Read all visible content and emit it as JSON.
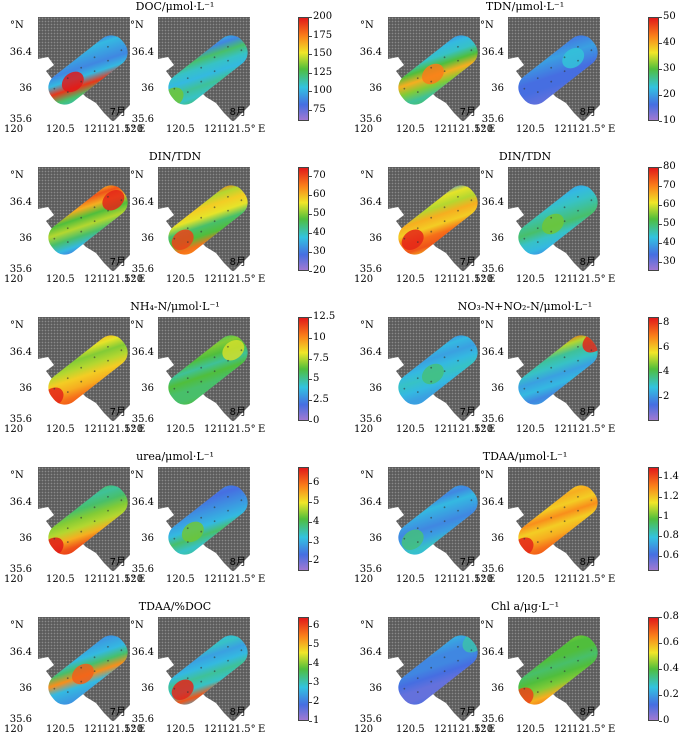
{
  "axes": {
    "lat_ticks": [
      "36.4",
      "36",
      "35.6"
    ],
    "lon_ticks": [
      "120",
      "120.5",
      "121",
      "121.5°",
      "E"
    ],
    "north_label": "°N"
  },
  "chart_data": [
    {
      "type": "heatmap",
      "title": "DOC/μmol·L⁻¹",
      "panels": [
        {
          "month": "7月",
          "lat_ticks": [
            36.4,
            36,
            35.6
          ]
        },
        {
          "month": "8月",
          "lat_ticks": [
            36.4,
            36,
            35.6
          ]
        }
      ],
      "xlim": [
        120,
        121.5
      ],
      "ylim": [
        35.6,
        36.6
      ],
      "colorbar": {
        "range": [
          60,
          200
        ],
        "ticks": [
          "200",
          "175",
          "150",
          "125",
          "100",
          "75"
        ]
      },
      "rendered_levels": {
        "july": [
          0.35,
          0.45,
          0.95,
          0.3,
          0.2,
          0.25,
          0.3,
          0.15
        ],
        "august": [
          0.45,
          0.35,
          0.4,
          0.3,
          0.35,
          0.45,
          0.2,
          0.3
        ]
      }
    },
    {
      "type": "heatmap",
      "title": "TDN/μmol·L⁻¹",
      "panels": [
        {
          "month": "7月"
        },
        {
          "month": "8月"
        }
      ],
      "xlim": [
        120,
        121.5
      ],
      "ylim": [
        35.6,
        36.6
      ],
      "colorbar": {
        "range": [
          10,
          50
        ],
        "ticks": [
          "50",
          "40",
          "30",
          "20",
          "10"
        ]
      },
      "rendered_levels": {
        "july": [
          0.45,
          0.4,
          0.55,
          0.75,
          0.5,
          0.35,
          0.3,
          0.2
        ],
        "august": [
          0.1,
          0.12,
          0.15,
          0.15,
          0.2,
          0.25,
          0.2,
          0.15
        ]
      }
    },
    {
      "type": "heatmap",
      "title": "DIN/TDN",
      "panels": [
        {
          "month": "7月"
        },
        {
          "month": "8月"
        }
      ],
      "xlim": [
        120,
        121.5
      ],
      "ylim": [
        35.6,
        36.6
      ],
      "colorbar": {
        "range": [
          20,
          75
        ],
        "ticks": [
          "70",
          "60",
          "50",
          "40",
          "30",
          "20"
        ]
      },
      "rendered_levels": {
        "july": [
          0.15,
          0.3,
          0.45,
          0.6,
          0.5,
          0.75,
          0.9,
          0.7
        ],
        "august": [
          0.8,
          0.85,
          0.5,
          0.45,
          0.65,
          0.7,
          0.6,
          0.85
        ]
      }
    },
    {
      "type": "heatmap",
      "title": "DIN/TDN",
      "panels": [
        {
          "month": "7月"
        },
        {
          "month": "8月"
        }
      ],
      "xlim": [
        120,
        121.5
      ],
      "ylim": [
        35.6,
        36.6
      ],
      "colorbar": {
        "range": [
          25,
          80
        ],
        "ticks": [
          "80",
          "70",
          "60",
          "50",
          "40",
          "30"
        ]
      },
      "rendered_levels": {
        "july": [
          0.7,
          0.9,
          0.85,
          0.7,
          0.75,
          0.6,
          0.65,
          0.2
        ],
        "august": [
          0.2,
          0.3,
          0.35,
          0.45,
          0.4,
          0.35,
          0.3,
          0.25
        ]
      }
    },
    {
      "type": "heatmap",
      "title": "NH₄-N/μmol·L⁻¹",
      "panels": [
        {
          "month": "7月"
        },
        {
          "month": "8月"
        }
      ],
      "xlim": [
        120,
        121.5
      ],
      "ylim": [
        35.6,
        36.6
      ],
      "colorbar": {
        "range": [
          0,
          12.5
        ],
        "ticks": [
          "12.5",
          "10",
          "7.5",
          "5",
          "2.5",
          "0"
        ]
      },
      "rendered_levels": {
        "july": [
          0.9,
          0.85,
          0.75,
          0.7,
          0.6,
          0.55,
          0.65,
          0.75
        ],
        "august": [
          0.5,
          0.45,
          0.45,
          0.5,
          0.4,
          0.5,
          0.55,
          0.45
        ]
      }
    },
    {
      "type": "heatmap",
      "title": "NO₃-N+NO₂-N/μmol·L⁻¹",
      "panels": [
        {
          "month": "7月"
        },
        {
          "month": "8月"
        }
      ],
      "xlim": [
        120,
        121.5
      ],
      "ylim": [
        35.6,
        36.6
      ],
      "colorbar": {
        "range": [
          0,
          8.5
        ],
        "ticks": [
          "8",
          "6",
          "4",
          "2"
        ]
      },
      "rendered_levels": {
        "july": [
          0.25,
          0.25,
          0.3,
          0.35,
          0.3,
          0.25,
          0.3,
          0.2
        ],
        "august": [
          0.25,
          0.2,
          0.3,
          0.25,
          0.35,
          0.4,
          0.6,
          0.9
        ]
      }
    },
    {
      "type": "heatmap",
      "title": "urea/μmol·L⁻¹",
      "panels": [
        {
          "month": "7月"
        },
        {
          "month": "8月"
        }
      ],
      "xlim": [
        120,
        121.5
      ],
      "ylim": [
        35.6,
        36.6
      ],
      "colorbar": {
        "range": [
          1.5,
          6.8
        ],
        "ticks": [
          "6",
          "5",
          "4",
          "3",
          "2"
        ]
      },
      "rendered_levels": {
        "july": [
          0.95,
          0.9,
          0.75,
          0.6,
          0.55,
          0.45,
          0.4,
          0.45
        ],
        "august": [
          0.4,
          0.35,
          0.45,
          0.3,
          0.25,
          0.2,
          0.15,
          0.2
        ]
      }
    },
    {
      "type": "heatmap",
      "title": "TDAA/μmol·L⁻¹",
      "panels": [
        {
          "month": "7月"
        },
        {
          "month": "8月"
        }
      ],
      "xlim": [
        120,
        121.5
      ],
      "ylim": [
        35.6,
        36.6
      ],
      "colorbar": {
        "range": [
          0.45,
          1.5
        ],
        "ticks": [
          "1.4",
          "1.2",
          "1",
          "0.8",
          "0.6"
        ]
      },
      "rendered_levels": {
        "july": [
          0.3,
          0.35,
          0.25,
          0.2,
          0.25,
          0.3,
          0.2,
          0.25
        ],
        "august": [
          0.9,
          0.85,
          0.75,
          0.7,
          0.8,
          0.7,
          0.75,
          0.7
        ]
      }
    },
    {
      "type": "heatmap",
      "title": "TDAA/%DOC",
      "panels": [
        {
          "month": "7月"
        },
        {
          "month": "8月"
        }
      ],
      "xlim": [
        120,
        121.5
      ],
      "ylim": [
        35.6,
        36.6
      ],
      "colorbar": {
        "range": [
          1,
          6.5
        ],
        "ticks": [
          "6",
          "5",
          "4",
          "3",
          "2",
          "1"
        ]
      },
      "rendered_levels": {
        "july": [
          0.2,
          0.25,
          0.3,
          0.8,
          0.45,
          0.3,
          0.25,
          0.2
        ],
        "august": [
          0.3,
          0.9,
          0.35,
          0.4,
          0.3,
          0.25,
          0.35,
          0.3
        ]
      }
    },
    {
      "type": "heatmap",
      "title": "Chl a/μg·L⁻¹",
      "panels": [
        {
          "month": "7月"
        },
        {
          "month": "8月"
        }
      ],
      "xlim": [
        120,
        121.5
      ],
      "ylim": [
        35.6,
        36.6
      ],
      "colorbar": {
        "range": [
          0,
          0.8
        ],
        "ticks": [
          "0.8",
          "0.6",
          "0.4",
          "0.2",
          "0"
        ]
      },
      "rendered_levels": {
        "july": [
          0.15,
          0.1,
          0.1,
          0.15,
          0.2,
          0.2,
          0.25,
          0.3
        ],
        "august": [
          0.85,
          0.75,
          0.55,
          0.5,
          0.45,
          0.5,
          0.5,
          0.55
        ]
      }
    }
  ]
}
